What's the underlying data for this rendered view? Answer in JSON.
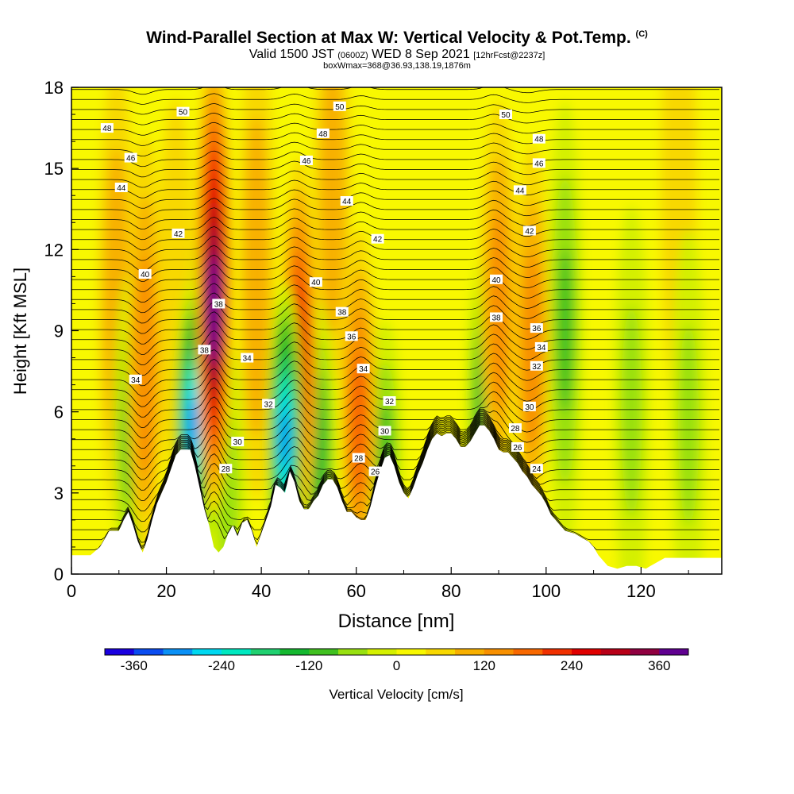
{
  "header": {
    "title_main": "Wind-Parallel Section at Max W: Vertical Velocity & Pot.Temp.",
    "title_mark": "(C)",
    "valid_prefix": "Valid 1500 JST",
    "valid_utc": "(0600Z)",
    "valid_date": "WED 8 Sep 2021",
    "forecast_tag": "[12hrFcst@2237z]",
    "box_wmax": "boxWmax=368@36.93,138.19,1876m"
  },
  "chart_data": {
    "type": "heatmap",
    "xlabel": "Distance [nm]",
    "ylabel": "Height [Kft MSL]",
    "xlim": [
      0,
      137
    ],
    "ylim": [
      0,
      18
    ],
    "x_ticks": [
      0,
      20,
      40,
      60,
      80,
      100,
      120
    ],
    "y_ticks": [
      0,
      3,
      6,
      9,
      12,
      15,
      18
    ],
    "colorbar": {
      "label": "Vertical Velocity [cm/s]",
      "ticks": [
        -360,
        -240,
        -120,
        0,
        120,
        240,
        360
      ],
      "range": [
        -400,
        400
      ],
      "colors": [
        "#1a00e0",
        "#0a4cf0",
        "#0a90f5",
        "#00d8f0",
        "#00e8c0",
        "#20d070",
        "#15b830",
        "#40c020",
        "#98e010",
        "#d4f000",
        "#f8f800",
        "#f8d800",
        "#f8b000",
        "#f89000",
        "#f86800",
        "#f03000",
        "#e00000",
        "#b80018",
        "#900040",
        "#600090"
      ]
    },
    "terrain_kft": [
      [
        0,
        0.7
      ],
      [
        4,
        0.7
      ],
      [
        6,
        1.0
      ],
      [
        8,
        1.6
      ],
      [
        10,
        1.6
      ],
      [
        11,
        2.0
      ],
      [
        12,
        2.3
      ],
      [
        13,
        1.8
      ],
      [
        14,
        1.2
      ],
      [
        15,
        0.8
      ],
      [
        16,
        1.3
      ],
      [
        17,
        2.0
      ],
      [
        18,
        2.6
      ],
      [
        19,
        3.0
      ],
      [
        20,
        3.4
      ],
      [
        21,
        3.9
      ],
      [
        22,
        4.4
      ],
      [
        23,
        4.6
      ],
      [
        25,
        4.6
      ],
      [
        26,
        4.0
      ],
      [
        27,
        3.2
      ],
      [
        28,
        2.4
      ],
      [
        29,
        1.8
      ],
      [
        30,
        1.0
      ],
      [
        31,
        0.8
      ],
      [
        32,
        1.0
      ],
      [
        33,
        1.5
      ],
      [
        34,
        1.8
      ],
      [
        35,
        1.4
      ],
      [
        36,
        1.9
      ],
      [
        37,
        2.0
      ],
      [
        38,
        1.6
      ],
      [
        39,
        1.0
      ],
      [
        40,
        1.5
      ],
      [
        41,
        2.0
      ],
      [
        42,
        2.5
      ],
      [
        43,
        3.3
      ],
      [
        44,
        3.2
      ],
      [
        45,
        3.0
      ],
      [
        46,
        3.8
      ],
      [
        47,
        3.4
      ],
      [
        48,
        2.7
      ],
      [
        49,
        2.4
      ],
      [
        50,
        2.4
      ],
      [
        51,
        2.7
      ],
      [
        52,
        2.9
      ],
      [
        53,
        3.3
      ],
      [
        54,
        3.5
      ],
      [
        55,
        3.5
      ],
      [
        56,
        3.2
      ],
      [
        57,
        2.7
      ],
      [
        58,
        2.3
      ],
      [
        59,
        2.3
      ],
      [
        60,
        2.1
      ],
      [
        61,
        2.0
      ],
      [
        62,
        2.0
      ],
      [
        63,
        2.5
      ],
      [
        64,
        3.2
      ],
      [
        65,
        3.8
      ],
      [
        66,
        4.3
      ],
      [
        67,
        4.4
      ],
      [
        68,
        4.0
      ],
      [
        69,
        3.4
      ],
      [
        70,
        3.0
      ],
      [
        71,
        2.8
      ],
      [
        72,
        3.2
      ],
      [
        73,
        3.7
      ],
      [
        74,
        4.1
      ],
      [
        75,
        4.6
      ],
      [
        76,
        5.0
      ],
      [
        77,
        5.2
      ],
      [
        78,
        5.1
      ],
      [
        79,
        5.2
      ],
      [
        80,
        5.2
      ],
      [
        81,
        5.0
      ],
      [
        82,
        4.7
      ],
      [
        83,
        4.7
      ],
      [
        84,
        4.9
      ],
      [
        85,
        5.2
      ],
      [
        86,
        5.5
      ],
      [
        87,
        5.5
      ],
      [
        88,
        5.3
      ],
      [
        89,
        5.0
      ],
      [
        90,
        4.6
      ],
      [
        91,
        4.5
      ],
      [
        92,
        4.5
      ],
      [
        93,
        4.3
      ],
      [
        94,
        4.1
      ],
      [
        95,
        3.8
      ],
      [
        96,
        3.6
      ],
      [
        97,
        3.3
      ],
      [
        98,
        3.1
      ],
      [
        99,
        2.9
      ],
      [
        100,
        2.6
      ],
      [
        101,
        2.2
      ],
      [
        102,
        2.0
      ],
      [
        103,
        1.8
      ],
      [
        104,
        1.6
      ],
      [
        106,
        1.5
      ],
      [
        108,
        1.3
      ],
      [
        109,
        1.2
      ],
      [
        110,
        1.0
      ],
      [
        111,
        0.7
      ],
      [
        112,
        0.5
      ],
      [
        113,
        0.3
      ],
      [
        115,
        0.2
      ],
      [
        117,
        0.3
      ],
      [
        119,
        0.3
      ],
      [
        121,
        0.2
      ],
      [
        122,
        0.3
      ],
      [
        124,
        0.5
      ],
      [
        125,
        0.6
      ],
      [
        137,
        0.6
      ]
    ],
    "updrafts_cm_s": [
      {
        "x": 30.0,
        "y": 9.5,
        "w": 380
      },
      {
        "x": 48.0,
        "y": 7.0,
        "w": 260
      },
      {
        "x": 60.5,
        "y": 5.0,
        "w": 190
      },
      {
        "x": 15.5,
        "y": 7.0,
        "w": 130
      },
      {
        "x": 9.5,
        "y": 9.0,
        "w": 90
      },
      {
        "x": 90.0,
        "y": 9.0,
        "w": 150
      },
      {
        "x": 97.0,
        "y": 7.5,
        "w": 130
      },
      {
        "x": 55.0,
        "y": 13.0,
        "w": 110
      },
      {
        "x": 39.0,
        "y": 10.0,
        "w": 90
      },
      {
        "x": 22.0,
        "y": 9.0,
        "w": 70
      },
      {
        "x": 128.0,
        "y": 13.0,
        "w": 70
      }
    ],
    "downdrafts_cm_s": [
      {
        "x": 25.5,
        "y": 5.5,
        "w": -300
      },
      {
        "x": 45.0,
        "y": 5.0,
        "w": -290
      },
      {
        "x": 52.0,
        "y": 4.5,
        "w": -160
      },
      {
        "x": 28.0,
        "y": 6.5,
        "w": -150
      },
      {
        "x": 66.0,
        "y": 4.5,
        "w": -120
      },
      {
        "x": 87.0,
        "y": 6.5,
        "w": -130
      },
      {
        "x": 12.5,
        "y": 5.0,
        "w": -110
      },
      {
        "x": 33.0,
        "y": 3.0,
        "w": -80
      },
      {
        "x": 104.0,
        "y": 9.0,
        "w": -90
      },
      {
        "x": 118.0,
        "y": 6.0,
        "w": -80
      },
      {
        "x": 130.0,
        "y": 5.5,
        "w": -70
      }
    ],
    "theta_contour_labels": [
      {
        "text": "50",
        "x": 23.5,
        "y": 17.1
      },
      {
        "text": "50",
        "x": 56.5,
        "y": 17.3
      },
      {
        "text": "50",
        "x": 91.5,
        "y": 17.0
      },
      {
        "text": "48",
        "x": 7.5,
        "y": 16.5
      },
      {
        "text": "48",
        "x": 53.0,
        "y": 16.3
      },
      {
        "text": "48",
        "x": 98.5,
        "y": 16.1
      },
      {
        "text": "46",
        "x": 12.5,
        "y": 15.4
      },
      {
        "text": "46",
        "x": 49.5,
        "y": 15.3
      },
      {
        "text": "46",
        "x": 98.5,
        "y": 15.2
      },
      {
        "text": "44",
        "x": 10.5,
        "y": 14.3
      },
      {
        "text": "44",
        "x": 58.0,
        "y": 13.8
      },
      {
        "text": "44",
        "x": 94.5,
        "y": 14.2
      },
      {
        "text": "42",
        "x": 22.5,
        "y": 12.6
      },
      {
        "text": "42",
        "x": 64.5,
        "y": 12.4
      },
      {
        "text": "42",
        "x": 96.5,
        "y": 12.7
      },
      {
        "text": "40",
        "x": 15.5,
        "y": 11.1
      },
      {
        "text": "40",
        "x": 51.5,
        "y": 10.8
      },
      {
        "text": "40",
        "x": 89.5,
        "y": 10.9
      },
      {
        "text": "38",
        "x": 31.0,
        "y": 10.0
      },
      {
        "text": "38",
        "x": 57.0,
        "y": 9.7
      },
      {
        "text": "38",
        "x": 89.5,
        "y": 9.5
      },
      {
        "text": "38",
        "x": 28.0,
        "y": 8.3
      },
      {
        "text": "36",
        "x": 59.0,
        "y": 8.8
      },
      {
        "text": "36",
        "x": 98.0,
        "y": 9.1
      },
      {
        "text": "34",
        "x": 37.0,
        "y": 8.0
      },
      {
        "text": "34",
        "x": 61.5,
        "y": 7.6
      },
      {
        "text": "34",
        "x": 99.0,
        "y": 8.4
      },
      {
        "text": "34",
        "x": 13.5,
        "y": 7.2
      },
      {
        "text": "32",
        "x": 41.5,
        "y": 6.3
      },
      {
        "text": "32",
        "x": 67.0,
        "y": 6.4
      },
      {
        "text": "32",
        "x": 98.0,
        "y": 7.7
      },
      {
        "text": "30",
        "x": 35.0,
        "y": 4.9
      },
      {
        "text": "30",
        "x": 66.0,
        "y": 5.3
      },
      {
        "text": "30",
        "x": 96.5,
        "y": 6.2
      },
      {
        "text": "28",
        "x": 32.5,
        "y": 3.9
      },
      {
        "text": "28",
        "x": 60.5,
        "y": 4.3
      },
      {
        "text": "28",
        "x": 93.5,
        "y": 5.4
      },
      {
        "text": "26",
        "x": 64.0,
        "y": 3.8
      },
      {
        "text": "26",
        "x": 94.0,
        "y": 4.7
      },
      {
        "text": "24",
        "x": 98.0,
        "y": 3.9
      }
    ]
  }
}
